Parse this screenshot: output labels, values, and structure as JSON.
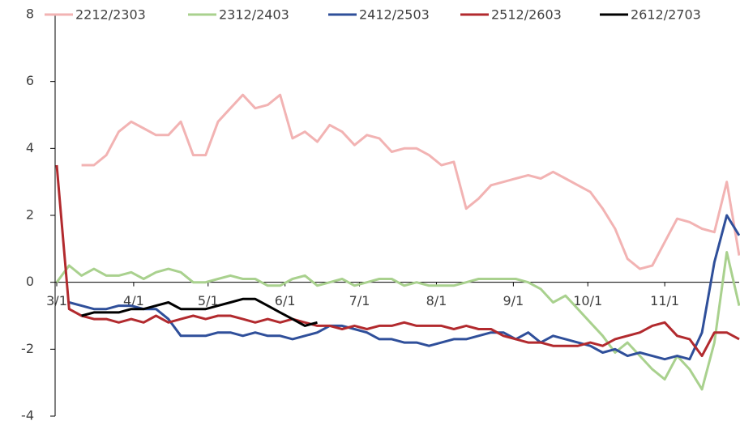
{
  "chart_data": {
    "type": "line",
    "x": [
      0,
      5,
      10,
      15,
      20,
      25,
      30,
      35,
      40,
      45,
      50,
      55,
      60,
      65,
      70,
      75,
      80,
      85,
      90,
      95,
      100,
      105,
      110,
      115,
      120,
      125,
      130,
      135,
      140,
      145,
      150,
      155,
      160,
      165,
      170,
      175,
      180,
      185,
      190,
      195,
      200,
      205,
      210,
      215,
      220,
      225,
      230,
      235,
      240,
      245,
      250,
      255,
      260,
      265,
      270,
      275
    ],
    "xlim": [
      0,
      275
    ],
    "xticks": [
      {
        "value": 0,
        "label": "3/1"
      },
      {
        "value": 31,
        "label": "4/1"
      },
      {
        "value": 61,
        "label": "5/1"
      },
      {
        "value": 92,
        "label": "6/1"
      },
      {
        "value": 122,
        "label": "7/1"
      },
      {
        "value": 153,
        "label": "8/1"
      },
      {
        "value": 184,
        "label": "9/1"
      },
      {
        "value": 214,
        "label": "10/1"
      },
      {
        "value": 245,
        "label": "11/1"
      }
    ],
    "ylim": [
      -4,
      8
    ],
    "yticks": [
      -4,
      -2,
      0,
      2,
      4,
      6,
      8
    ],
    "series": [
      {
        "name": "2212/2303",
        "color": "#f2b3b3",
        "values": [
          null,
          null,
          3.5,
          3.5,
          3.8,
          4.5,
          4.8,
          4.6,
          4.4,
          4.4,
          4.8,
          3.8,
          3.8,
          4.8,
          5.2,
          5.6,
          5.2,
          5.3,
          5.6,
          4.3,
          4.5,
          4.2,
          4.7,
          4.5,
          4.1,
          4.4,
          4.3,
          3.9,
          4.0,
          4.0,
          3.8,
          3.5,
          3.6,
          2.2,
          2.5,
          2.9,
          3.0,
          3.1,
          3.2,
          3.1,
          3.3,
          3.1,
          2.9,
          2.7,
          2.2,
          1.6,
          0.7,
          0.4,
          0.5,
          1.2,
          1.9,
          1.8,
          1.6,
          1.5,
          3.0,
          0.8
        ]
      },
      {
        "name": "2312/2403",
        "color": "#a9d18e",
        "values": [
          0,
          0.5,
          0.2,
          0.4,
          0.2,
          0.2,
          0.3,
          0.1,
          0.3,
          0.4,
          0.3,
          0,
          0,
          0.1,
          0.2,
          0.1,
          0.1,
          -0.1,
          -0.1,
          0.1,
          0.2,
          -0.1,
          0,
          0.1,
          -0.1,
          0,
          0.1,
          0.1,
          -0.1,
          0,
          -0.1,
          -0.1,
          -0.1,
          0,
          0.1,
          0.1,
          0.1,
          0.1,
          0,
          -0.2,
          -0.6,
          -0.4,
          -0.8,
          -1.2,
          -1.6,
          -2.1,
          -1.8,
          -2.2,
          -2.6,
          -2.9,
          -2.2,
          -2.6,
          -3.2,
          -1.8,
          0.9,
          -0.7
        ]
      },
      {
        "name": "2412/2503",
        "color": "#2f4f9a",
        "values": [
          null,
          -0.6,
          -0.7,
          -0.8,
          -0.8,
          -0.7,
          -0.7,
          -0.8,
          -0.8,
          -1.1,
          -1.6,
          -1.6,
          -1.6,
          -1.5,
          -1.5,
          -1.6,
          -1.5,
          -1.6,
          -1.6,
          -1.7,
          -1.6,
          -1.5,
          -1.3,
          -1.3,
          -1.4,
          -1.5,
          -1.7,
          -1.7,
          -1.8,
          -1.8,
          -1.9,
          -1.8,
          -1.7,
          -1.7,
          -1.6,
          -1.5,
          -1.5,
          -1.7,
          -1.5,
          -1.8,
          -1.6,
          -1.7,
          -1.8,
          -1.9,
          -2.1,
          -2.0,
          -2.2,
          -2.1,
          -2.2,
          -2.3,
          -2.2,
          -2.3,
          -1.5,
          0.6,
          2.0,
          1.4
        ]
      },
      {
        "name": "2512/2603",
        "color": "#b22a2e",
        "values": [
          3.5,
          -0.8,
          -1.0,
          -1.1,
          -1.1,
          -1.2,
          -1.1,
          -1.2,
          -1.0,
          -1.2,
          -1.1,
          -1.0,
          -1.1,
          -1.0,
          -1.0,
          -1.1,
          -1.2,
          -1.1,
          -1.2,
          -1.1,
          -1.2,
          -1.3,
          -1.3,
          -1.4,
          -1.3,
          -1.4,
          -1.3,
          -1.3,
          -1.2,
          -1.3,
          -1.3,
          -1.3,
          -1.4,
          -1.3,
          -1.4,
          -1.4,
          -1.6,
          -1.7,
          -1.8,
          -1.8,
          -1.9,
          -1.9,
          -1.9,
          -1.8,
          -1.9,
          -1.7,
          -1.6,
          -1.5,
          -1.3,
          -1.2,
          -1.6,
          -1.7,
          -2.2,
          -1.5,
          -1.5,
          -1.7
        ]
      },
      {
        "name": "2612/2703",
        "color": "#000000",
        "values": [
          null,
          null,
          -1.0,
          -0.9,
          -0.9,
          -0.9,
          -0.8,
          -0.8,
          -0.7,
          -0.6,
          -0.8,
          -0.8,
          -0.8,
          -0.7,
          -0.6,
          -0.5,
          -0.5,
          -0.7,
          -0.9,
          -1.1,
          -1.3,
          -1.2,
          null,
          null,
          null,
          null,
          null,
          null,
          null,
          null,
          null,
          null,
          null,
          null,
          null,
          null,
          null,
          null,
          null,
          null,
          null,
          null,
          null,
          null,
          null,
          null,
          null,
          null,
          null,
          null,
          null,
          null,
          null,
          null,
          null,
          null
        ]
      }
    ]
  }
}
